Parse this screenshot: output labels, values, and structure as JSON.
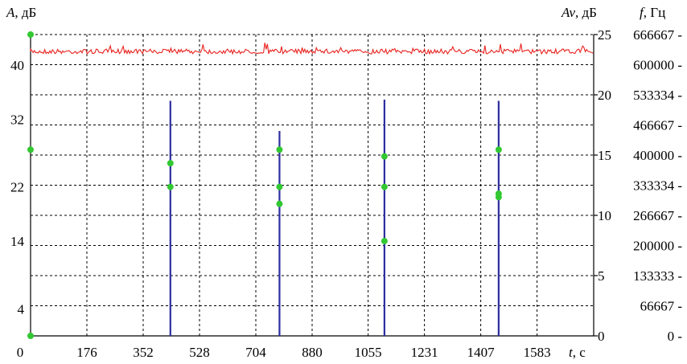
{
  "chart_data": {
    "type": "line",
    "axes": {
      "left": {
        "title_var": "A",
        "title_unit": ", дБ",
        "ticks": [
          "4",
          "14",
          "22",
          "32",
          "40"
        ],
        "tick_values": [
          4,
          14,
          22,
          32,
          40
        ]
      },
      "right_av": {
        "title_var": "Av",
        "title_unit": ", дБ",
        "ticks": [
          "0",
          "5",
          "10",
          "15",
          "20",
          "25"
        ],
        "ylim": [
          0,
          25
        ]
      },
      "right_f": {
        "title_var": "f",
        "title_unit": ", Гц",
        "ticks": [
          "0 -",
          "66667 -",
          "133333 -",
          "200000 -",
          "266667 -",
          "333334 -",
          "400000 -",
          "466667 -",
          "533334 -",
          "600000 -",
          "666667 -"
        ]
      },
      "bottom": {
        "title_var": "t",
        "title_unit": ", с",
        "ticks": [
          "0",
          "176",
          "352",
          "528",
          "704",
          "880",
          "1055",
          "1231",
          "1407",
          "1583"
        ],
        "tick_values": [
          0,
          176,
          352,
          528,
          704,
          880,
          1055,
          1231,
          1407,
          1583
        ],
        "xlim": [
          0,
          1760
        ]
      }
    },
    "grid": true,
    "colors": {
      "noise": "#e8231f",
      "pulse": "#2e2ea0",
      "marker": "#32c832",
      "grid": "#000000"
    },
    "noise_level_db": 42,
    "series": [
      {
        "kind": "pulses",
        "x": [
          437,
          778,
          1106,
          1463
        ],
        "height_av": [
          19.5,
          17,
          19.6,
          19.5
        ]
      },
      {
        "kind": "markers",
        "points": [
          {
            "x": 0,
            "y": 44.5
          },
          {
            "x": 0,
            "y": 27.5
          },
          {
            "x": 0,
            "y": 0
          },
          {
            "x": 437,
            "y": 25.5
          },
          {
            "x": 437,
            "y": 22
          },
          {
            "x": 778,
            "y": 27.5
          },
          {
            "x": 778,
            "y": 22
          },
          {
            "x": 778,
            "y": 19.5
          },
          {
            "x": 1106,
            "y": 26.5
          },
          {
            "x": 1106,
            "y": 22
          },
          {
            "x": 1106,
            "y": 14
          },
          {
            "x": 1463,
            "y": 27.5
          },
          {
            "x": 1463,
            "y": 21
          },
          {
            "x": 1463,
            "y": 20.5
          }
        ]
      }
    ]
  }
}
